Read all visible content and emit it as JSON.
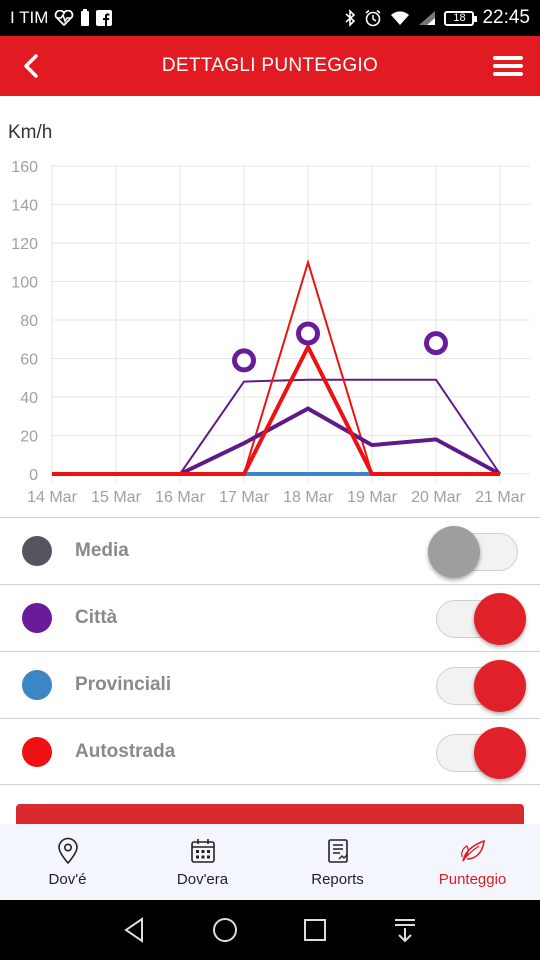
{
  "status_bar": {
    "carrier": "I TIM",
    "battery_level": "18",
    "time": "22:45",
    "icons": [
      "heart-monitor-icon",
      "battery-saver-icon",
      "facebook-icon",
      "bluetooth-icon",
      "alarm-icon",
      "wifi-icon",
      "signal-icon",
      "battery-icon"
    ]
  },
  "app_bar": {
    "title": "DETTAGLI PUNTEGGIO",
    "back_icon": "chevron-left-icon",
    "menu_icon": "hamburger-menu-icon",
    "color": "#e21b23"
  },
  "chart_data": {
    "type": "line",
    "ylabel": "Km/h",
    "ylim": [
      0,
      160
    ],
    "yticks": [
      0,
      20,
      40,
      60,
      80,
      100,
      120,
      140,
      160
    ],
    "categories": [
      "14 Mar",
      "15 Mar",
      "16 Mar",
      "17 Mar",
      "18 Mar",
      "19 Mar",
      "20 Mar",
      "21 Mar"
    ],
    "grid": true,
    "series": [
      {
        "name": "Città",
        "kind": "average",
        "color": "#5e1a8a",
        "values": [
          0,
          0,
          0,
          16,
          34,
          15,
          18,
          0
        ]
      },
      {
        "name": "Città",
        "kind": "max",
        "color": "#5e1a8a",
        "values": [
          0,
          0,
          0,
          48,
          49,
          49,
          49,
          0
        ]
      },
      {
        "name": "Città",
        "kind": "limit-marker",
        "color": "#6a1b9a",
        "points": [
          [
            3,
            59
          ],
          [
            4,
            73
          ],
          [
            6,
            68
          ]
        ]
      },
      {
        "name": "Provinciali",
        "kind": "average",
        "color": "#3b86c4",
        "values": [
          0,
          0,
          0,
          0,
          0,
          0,
          null,
          null
        ]
      },
      {
        "name": "Autostrada",
        "kind": "average",
        "color": "#ee1111",
        "values": [
          0,
          0,
          0,
          0,
          66,
          0,
          0,
          0
        ]
      },
      {
        "name": "Autostrada",
        "kind": "max",
        "color": "#ee1111",
        "values": [
          0,
          0,
          0,
          0,
          110,
          0,
          0,
          0
        ]
      }
    ]
  },
  "legend": [
    {
      "label": "Media",
      "color": "#555560",
      "toggle_on": false
    },
    {
      "label": "Città",
      "color": "#6a1b9a",
      "toggle_on": true
    },
    {
      "label": "Provinciali",
      "color": "#3b86c4",
      "toggle_on": true
    },
    {
      "label": "Autostrada",
      "color": "#ee1111",
      "toggle_on": true
    }
  ],
  "bottom_nav": [
    {
      "label": "Dov'é",
      "icon": "location-pin-icon",
      "active": false
    },
    {
      "label": "Dov'era",
      "icon": "calendar-icon",
      "active": false
    },
    {
      "label": "Reports",
      "icon": "report-document-icon",
      "active": false
    },
    {
      "label": "Punteggio",
      "icon": "leaves-icon",
      "active": true
    }
  ],
  "system_nav": [
    "back-triangle-icon",
    "home-circle-icon",
    "recents-square-icon",
    "notification-pull-icon"
  ]
}
